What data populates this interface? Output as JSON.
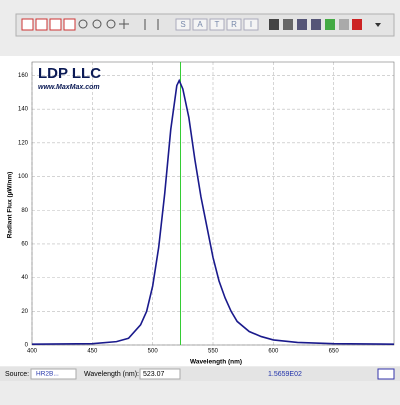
{
  "toolbar": {
    "letters": [
      "S",
      "A",
      "T",
      "R",
      "I"
    ]
  },
  "chart_data": {
    "type": "line",
    "brand": "LDP LLC",
    "website": "www.MaxMax.com",
    "xlabel": "Wavelength (nm)",
    "ylabel": "Radiant Flux (µW/nm)",
    "x": [
      400,
      450,
      470,
      480,
      490,
      495,
      500,
      505,
      510,
      515,
      520,
      522,
      525,
      530,
      535,
      540,
      545,
      550,
      555,
      560,
      565,
      570,
      580,
      590,
      600,
      620,
      650,
      700
    ],
    "values": [
      0.5,
      0.8,
      2,
      4,
      12,
      20,
      35,
      58,
      90,
      128,
      154,
      157,
      152,
      135,
      110,
      88,
      70,
      52,
      38,
      28,
      20,
      14,
      8,
      5,
      3,
      1.5,
      0.8,
      0.5
    ],
    "color": "#1a1a8c",
    "xlim": [
      400,
      700
    ],
    "ylim": [
      0,
      168
    ],
    "xticks": [
      400,
      450,
      500,
      550,
      600,
      650
    ],
    "yticks": [
      0,
      20,
      40,
      60,
      80,
      100,
      120,
      140,
      160
    ],
    "grid": true
  },
  "status_bar": {
    "source_label": "Source:",
    "source_value": "HR2B...",
    "wavelength_label": "Wavelength (nm):",
    "wavelength": 523.07,
    "reading": "1.5659E02"
  }
}
